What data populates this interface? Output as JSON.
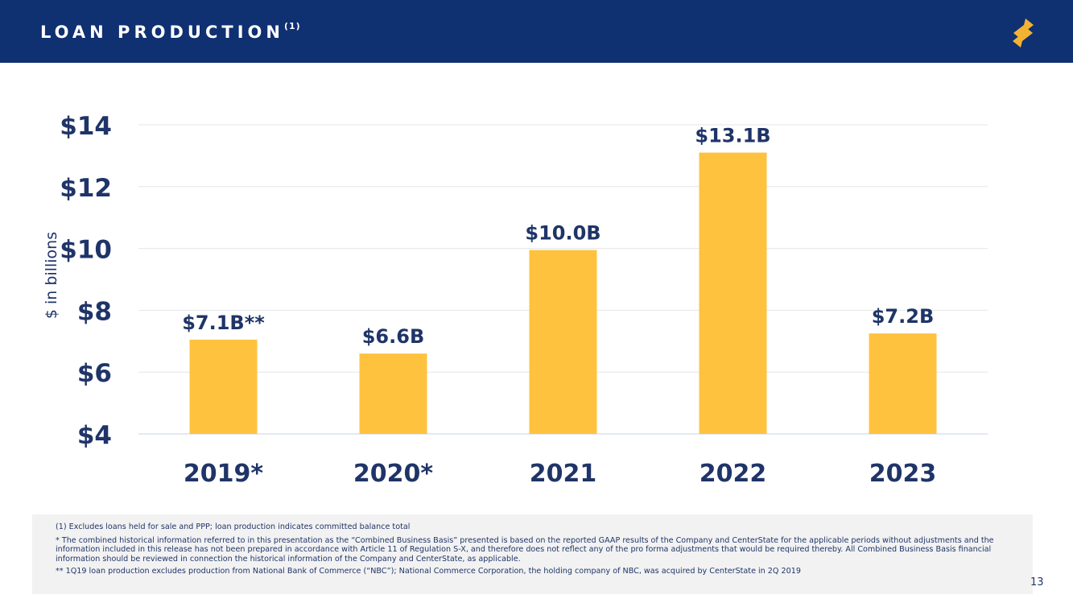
{
  "header": {
    "title": "LOAN PRODUCTION",
    "title_sup": "(1)",
    "logo_icon": "brand-s-logo-icon"
  },
  "colors": {
    "header_bg": "#0f3071",
    "bar": "#ffc23f",
    "text": "#1f3468",
    "logo": "#f2b233",
    "footnote_bg": "#f2f2f2"
  },
  "chart_data": {
    "type": "bar",
    "title": "",
    "ylabel": "$ in billions",
    "xlabel": "",
    "categories": [
      "2019*",
      "2020*",
      "2021",
      "2022",
      "2023"
    ],
    "values": [
      7.05,
      6.6,
      9.95,
      13.1,
      7.25
    ],
    "data_labels": [
      "$7.1B**",
      "$6.6B",
      "$10.0B",
      "$13.1B",
      "$7.2B"
    ],
    "ylim": [
      4,
      14
    ],
    "yticks": [
      4,
      6,
      8,
      10,
      12,
      14
    ],
    "ytick_labels": [
      "$4",
      "$6",
      "$8",
      "$10",
      "$12",
      "$14"
    ],
    "grid": true,
    "legend": "none"
  },
  "footnotes": {
    "note1": "(1) Excludes loans held for sale and PPP; loan production indicates committed balance total",
    "note2": "*    The combined historical information referred to in this presentation as the “Combined Business Basis” presented is based on the reported GAAP results of the Company and CenterState for the applicable periods without adjustments and the information included in this release has not been prepared in accordance with Article 11 of Regulation S-X, and therefore does not reflect any of the pro forma adjustments that would be required thereby.  All Combined Business Basis financial information should be reviewed in connection the historical information of the Company and CenterState, as applicable.",
    "note3": "**    1Q19 loan production excludes production from National Bank of Commerce (“NBC”); National Commerce Corporation, the holding company of NBC, was acquired by CenterState in 2Q 2019"
  },
  "page_number": "13"
}
